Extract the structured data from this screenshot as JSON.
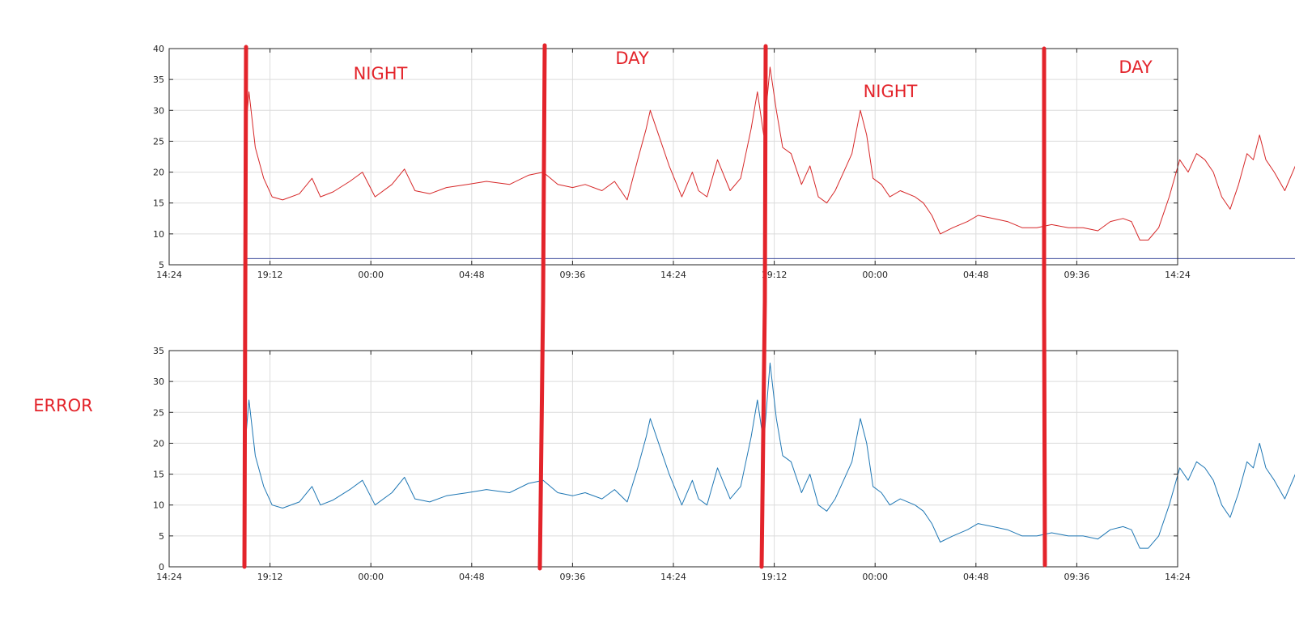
{
  "annotations": {
    "regions": [
      "NIGHT",
      "DAY",
      "NIGHT",
      "DAY"
    ],
    "side_label": "ERROR",
    "color": "#e3242b"
  },
  "chart_data": [
    {
      "type": "line",
      "x_tick_labels": [
        "14:24",
        "19:12",
        "00:00",
        "04:48",
        "09:36",
        "14:24",
        "19:12",
        "00:00",
        "04:48",
        "09:36",
        "14:24"
      ],
      "y_ticks": [
        5,
        10,
        15,
        20,
        25,
        30,
        35,
        40
      ],
      "ylim": [
        5,
        40
      ],
      "xlim_hours": [
        0,
        48
      ],
      "grid": true,
      "series": [
        {
          "color": "#d62728",
          "points": [
            [
              3.6,
              25
            ],
            [
              3.8,
              33
            ],
            [
              4.1,
              24
            ],
            [
              4.5,
              19
            ],
            [
              4.9,
              16
            ],
            [
              5.4,
              15.5
            ],
            [
              6.2,
              16.5
            ],
            [
              6.8,
              19
            ],
            [
              7.2,
              16
            ],
            [
              7.8,
              16.8
            ],
            [
              8.6,
              18.5
            ],
            [
              9.2,
              20
            ],
            [
              9.8,
              16
            ],
            [
              10.6,
              18
            ],
            [
              11.2,
              20.5
            ],
            [
              11.7,
              17
            ],
            [
              12.4,
              16.5
            ],
            [
              13.2,
              17.5
            ],
            [
              14.2,
              18
            ],
            [
              15.1,
              18.5
            ],
            [
              16.2,
              18
            ],
            [
              17.1,
              19.5
            ],
            [
              17.8,
              20
            ],
            [
              18.5,
              18
            ],
            [
              19.2,
              17.5
            ],
            [
              19.8,
              18
            ],
            [
              20.6,
              17
            ],
            [
              21.2,
              18.5
            ],
            [
              21.8,
              15.5
            ],
            [
              22.3,
              22
            ],
            [
              22.7,
              27
            ],
            [
              22.9,
              30
            ],
            [
              23.2,
              27
            ],
            [
              23.8,
              21
            ],
            [
              24.4,
              16
            ],
            [
              24.9,
              20
            ],
            [
              25.2,
              17
            ],
            [
              25.6,
              16
            ],
            [
              26.1,
              22
            ],
            [
              26.7,
              17
            ],
            [
              27.2,
              19
            ],
            [
              27.7,
              27
            ],
            [
              28.0,
              33
            ],
            [
              28.3,
              26
            ],
            [
              28.6,
              37
            ],
            [
              28.9,
              30
            ],
            [
              29.2,
              24
            ],
            [
              29.6,
              23
            ],
            [
              30.1,
              18
            ],
            [
              30.5,
              21
            ],
            [
              30.9,
              16
            ],
            [
              31.3,
              15
            ],
            [
              31.7,
              17
            ],
            [
              32.1,
              20
            ],
            [
              32.5,
              23
            ],
            [
              32.9,
              30
            ],
            [
              33.2,
              26
            ],
            [
              33.5,
              19
            ],
            [
              33.9,
              18
            ],
            [
              34.3,
              16
            ],
            [
              34.8,
              17
            ],
            [
              35.5,
              16
            ],
            [
              35.9,
              15
            ],
            [
              36.3,
              13
            ],
            [
              36.7,
              10
            ],
            [
              37.3,
              11
            ],
            [
              38.0,
              12
            ],
            [
              38.5,
              13
            ],
            [
              39.2,
              12.5
            ],
            [
              39.9,
              12
            ],
            [
              40.6,
              11
            ],
            [
              41.3,
              11
            ],
            [
              42.0,
              11.5
            ],
            [
              42.8,
              11
            ],
            [
              43.5,
              11
            ],
            [
              44.2,
              10.5
            ],
            [
              44.8,
              12
            ],
            [
              45.4,
              12.5
            ],
            [
              45.8,
              12
            ],
            [
              46.2,
              9
            ],
            [
              46.6,
              9
            ],
            [
              47.1,
              11
            ],
            [
              47.6,
              16
            ],
            [
              48.1,
              22
            ],
            [
              48.5,
              20
            ],
            [
              48.9,
              23
            ],
            [
              49.3,
              22
            ],
            [
              49.7,
              20
            ],
            [
              50.1,
              16
            ],
            [
              50.5,
              14
            ],
            [
              50.9,
              18
            ],
            [
              51.3,
              23
            ],
            [
              51.6,
              22
            ],
            [
              51.9,
              26
            ],
            [
              52.2,
              22
            ],
            [
              52.6,
              20
            ],
            [
              53.1,
              17
            ],
            [
              53.6,
              21
            ],
            [
              54.0,
              24
            ],
            [
              54.3,
              21
            ],
            [
              54.7,
              17
            ]
          ]
        },
        {
          "color": "#3b4a9c",
          "points": [
            [
              3.6,
              6
            ],
            [
              54.7,
              6
            ]
          ]
        }
      ]
    },
    {
      "type": "line",
      "x_tick_labels": [
        "14:24",
        "19:12",
        "00:00",
        "04:48",
        "09:36",
        "14:24",
        "19:12",
        "00:00",
        "04:48",
        "09:36",
        "14:24"
      ],
      "y_ticks": [
        0,
        5,
        10,
        15,
        20,
        25,
        30,
        35
      ],
      "ylim": [
        0,
        35
      ],
      "xlim_hours": [
        0,
        48
      ],
      "grid": true,
      "series": [
        {
          "color": "#1f77b4",
          "points": [
            [
              3.6,
              19
            ],
            [
              3.8,
              27
            ],
            [
              4.1,
              18
            ],
            [
              4.5,
              13
            ],
            [
              4.9,
              10
            ],
            [
              5.4,
              9.5
            ],
            [
              6.2,
              10.5
            ],
            [
              6.8,
              13
            ],
            [
              7.2,
              10
            ],
            [
              7.8,
              10.8
            ],
            [
              8.6,
              12.5
            ],
            [
              9.2,
              14
            ],
            [
              9.8,
              10
            ],
            [
              10.6,
              12
            ],
            [
              11.2,
              14.5
            ],
            [
              11.7,
              11
            ],
            [
              12.4,
              10.5
            ],
            [
              13.2,
              11.5
            ],
            [
              14.2,
              12
            ],
            [
              15.1,
              12.5
            ],
            [
              16.2,
              12
            ],
            [
              17.1,
              13.5
            ],
            [
              17.8,
              14
            ],
            [
              18.5,
              12
            ],
            [
              19.2,
              11.5
            ],
            [
              19.8,
              12
            ],
            [
              20.6,
              11
            ],
            [
              21.2,
              12.5
            ],
            [
              21.8,
              10.5
            ],
            [
              22.3,
              16
            ],
            [
              22.7,
              21
            ],
            [
              22.9,
              24
            ],
            [
              23.2,
              21
            ],
            [
              23.8,
              15
            ],
            [
              24.4,
              10
            ],
            [
              24.9,
              14
            ],
            [
              25.2,
              11
            ],
            [
              25.6,
              10
            ],
            [
              26.1,
              16
            ],
            [
              26.7,
              11
            ],
            [
              27.2,
              13
            ],
            [
              27.7,
              21
            ],
            [
              28.0,
              27
            ],
            [
              28.3,
              20
            ],
            [
              28.6,
              33
            ],
            [
              28.9,
              24
            ],
            [
              29.2,
              18
            ],
            [
              29.6,
              17
            ],
            [
              30.1,
              12
            ],
            [
              30.5,
              15
            ],
            [
              30.9,
              10
            ],
            [
              31.3,
              9
            ],
            [
              31.7,
              11
            ],
            [
              32.1,
              14
            ],
            [
              32.5,
              17
            ],
            [
              32.9,
              24
            ],
            [
              33.2,
              20
            ],
            [
              33.5,
              13
            ],
            [
              33.9,
              12
            ],
            [
              34.3,
              10
            ],
            [
              34.8,
              11
            ],
            [
              35.5,
              10
            ],
            [
              35.9,
              9
            ],
            [
              36.3,
              7
            ],
            [
              36.7,
              4
            ],
            [
              37.3,
              5
            ],
            [
              38.0,
              6
            ],
            [
              38.5,
              7
            ],
            [
              39.2,
              6.5
            ],
            [
              39.9,
              6
            ],
            [
              40.6,
              5
            ],
            [
              41.3,
              5
            ],
            [
              42.0,
              5.5
            ],
            [
              42.8,
              5
            ],
            [
              43.5,
              5
            ],
            [
              44.2,
              4.5
            ],
            [
              44.8,
              6
            ],
            [
              45.4,
              6.5
            ],
            [
              45.8,
              6
            ],
            [
              46.2,
              3
            ],
            [
              46.6,
              3
            ],
            [
              47.1,
              5
            ],
            [
              47.6,
              10
            ],
            [
              48.1,
              16
            ],
            [
              48.5,
              14
            ],
            [
              48.9,
              17
            ],
            [
              49.3,
              16
            ],
            [
              49.7,
              14
            ],
            [
              50.1,
              10
            ],
            [
              50.5,
              8
            ],
            [
              50.9,
              12
            ],
            [
              51.3,
              17
            ],
            [
              51.6,
              16
            ],
            [
              51.9,
              20
            ],
            [
              52.2,
              16
            ],
            [
              52.6,
              14
            ],
            [
              53.1,
              11
            ],
            [
              53.6,
              15
            ],
            [
              54.0,
              19
            ],
            [
              54.3,
              15
            ],
            [
              54.7,
              11
            ]
          ]
        }
      ]
    }
  ]
}
